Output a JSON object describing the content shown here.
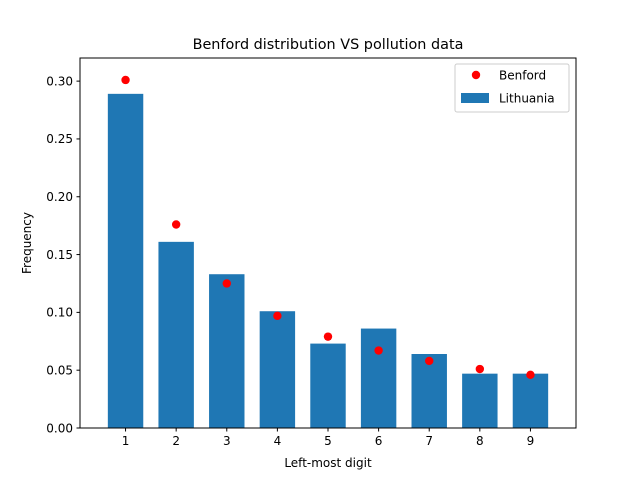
{
  "chart_data": {
    "type": "bar",
    "title": "Benford distribution VS pollution data",
    "xlabel": "Left-most digit",
    "ylabel": "Frequency",
    "categories": [
      "1",
      "2",
      "3",
      "4",
      "5",
      "6",
      "7",
      "8",
      "9"
    ],
    "xlim": [
      0.1,
      9.9
    ],
    "ylim": [
      0,
      0.32
    ],
    "yticks": [
      "0.00",
      "0.05",
      "0.10",
      "0.15",
      "0.20",
      "0.25",
      "0.30"
    ],
    "grid": false,
    "legend_position": "top-right",
    "series": [
      {
        "name": "Benford",
        "type": "scatter",
        "color": "#ff0000",
        "values": [
          0.301,
          0.176,
          0.125,
          0.097,
          0.079,
          0.067,
          0.058,
          0.051,
          0.046
        ]
      },
      {
        "name": "Lithuania",
        "type": "bar",
        "color": "#1f77b4",
        "values": [
          0.289,
          0.161,
          0.133,
          0.101,
          0.073,
          0.086,
          0.064,
          0.047,
          0.047
        ]
      }
    ]
  }
}
